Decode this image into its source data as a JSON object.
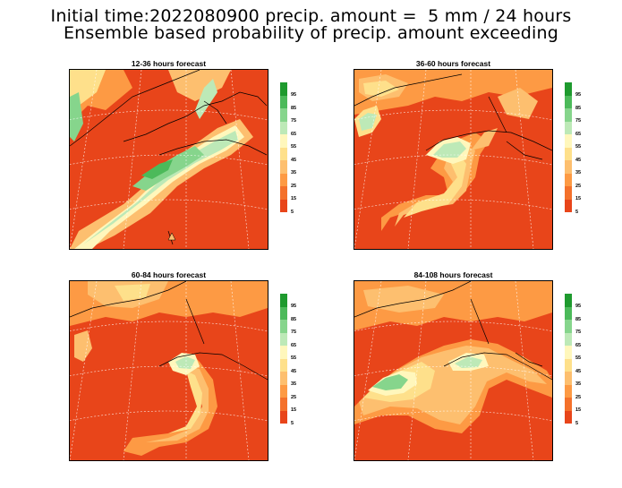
{
  "header": {
    "line1": "Initial time:2022080900 precip. amount =  5 mm / 24 hours",
    "line2": "Ensemble based probability of precip. amount exceeding"
  },
  "panels": [
    {
      "title": "12-36 hours forecast",
      "id": "p1"
    },
    {
      "title": "36-60 hours forecast",
      "id": "p2"
    },
    {
      "title": "60-84 hours forecast",
      "id": "p3"
    },
    {
      "title": "84-108 hours forecast",
      "id": "p4"
    }
  ],
  "colorbar": {
    "labels": [
      "95",
      "85",
      "75",
      "65",
      "55",
      "45",
      "35",
      "25",
      "15",
      "5"
    ],
    "colors": [
      "#1e9a2e",
      "#4cba5a",
      "#86d58c",
      "#bde9b7",
      "#fff7bc",
      "#fee08b",
      "#fdbf6f",
      "#fd9a44",
      "#f4712b",
      "#e8451a"
    ]
  }
}
